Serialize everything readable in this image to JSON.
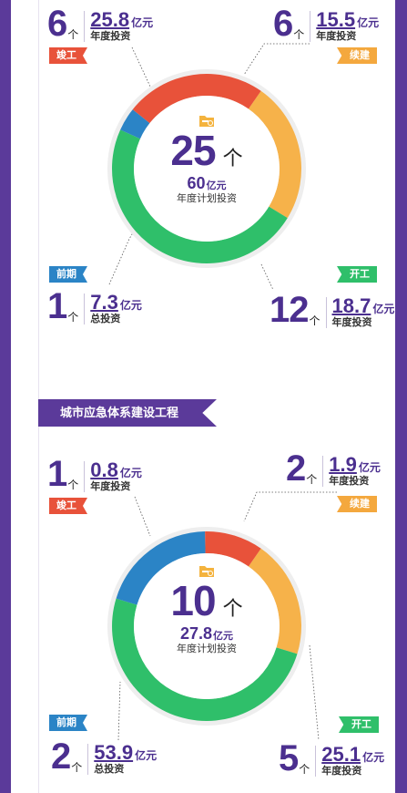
{
  "colors": {
    "purple": "#5b3a9a",
    "red": "#e8523a",
    "orange": "#f6b24a",
    "green": "#2fbf6a",
    "blue": "#2b84c6"
  },
  "section1": {
    "total": "25",
    "unit": "个",
    "plan_amount": "60",
    "plan_unit": "亿元",
    "plan_label": "年度计划投资",
    "stats": {
      "jungong": {
        "tag": "竣工",
        "count": "6",
        "count_unit": "个",
        "value": "25.8",
        "value_unit": "亿元",
        "label": "年度投资"
      },
      "xujian": {
        "tag": "续建",
        "count": "6",
        "count_unit": "个",
        "value": "15.5",
        "value_unit": "亿元",
        "label": "年度投资"
      },
      "qianqi": {
        "tag": "前期",
        "count": "1",
        "count_unit": "个",
        "value": "7.3",
        "value_unit": "亿元",
        "label": "总投资"
      },
      "kaigong": {
        "tag": "开工",
        "count": "12",
        "count_unit": "个",
        "value": "18.7",
        "value_unit": "亿元",
        "label": "年度投资"
      }
    },
    "donut_counts": {
      "orange": 6,
      "green": 12,
      "blue": 1,
      "red": 6
    }
  },
  "section2": {
    "banner": "城市应急体系建设工程",
    "total": "10",
    "unit": "个",
    "plan_amount": "27.8",
    "plan_unit": "亿元",
    "plan_label": "年度计划投资",
    "stats": {
      "jungong": {
        "tag": "竣工",
        "count": "1",
        "count_unit": "个",
        "value": "0.8",
        "value_unit": "亿元",
        "label": "年度投资"
      },
      "xujian": {
        "tag": "续建",
        "count": "2",
        "count_unit": "个",
        "value": "1.9",
        "value_unit": "亿元",
        "label": "年度投资"
      },
      "qianqi": {
        "tag": "前期",
        "count": "2",
        "count_unit": "个",
        "value": "53.9",
        "value_unit": "亿元",
        "label": "总投资"
      },
      "kaigong": {
        "tag": "开工",
        "count": "5",
        "count_unit": "个",
        "value": "25.1",
        "value_unit": "亿元",
        "label": "年度投资"
      }
    },
    "donut_counts": {
      "orange": 2,
      "green": 5,
      "blue": 2,
      "red": 1
    }
  },
  "icons": {
    "center": "folder-money-icon"
  }
}
